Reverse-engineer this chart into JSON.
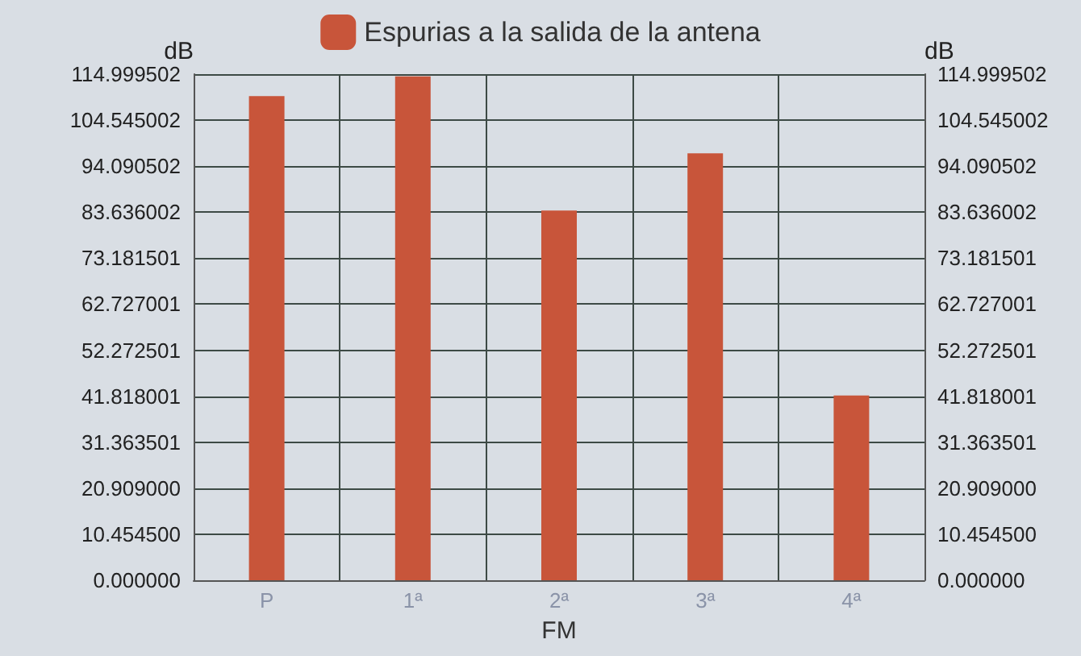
{
  "chart_data": {
    "type": "bar",
    "xlabel": "FM",
    "ylabel": "dB",
    "y2label": "dB",
    "categories": [
      "P",
      "1ª",
      "2ª",
      "3ª",
      "4ª"
    ],
    "series": [
      {
        "name": "Espurias a la salida de la antena",
        "color": "#c8553a",
        "values": [
          110,
          114.5,
          84,
          97,
          42
        ]
      }
    ],
    "ylim": [
      0,
      114.999502
    ],
    "yticks": [
      {
        "value": 0,
        "label": "0.000000"
      },
      {
        "value": 10.4545,
        "label": "10.454500"
      },
      {
        "value": 20.909,
        "label": "20.909000"
      },
      {
        "value": 31.363501,
        "label": "31.363501"
      },
      {
        "value": 41.818001,
        "label": "41.818001"
      },
      {
        "value": 52.272501,
        "label": "52.272501"
      },
      {
        "value": 62.727001,
        "label": "62.727001"
      },
      {
        "value": 73.181501,
        "label": "73.181501"
      },
      {
        "value": 83.636002,
        "label": "83.636002"
      },
      {
        "value": 94.090502,
        "label": "94.090502"
      },
      {
        "value": 104.545002,
        "label": "104.545002"
      },
      {
        "value": 114.999502,
        "label": "114.999502"
      }
    ],
    "y2lim": [
      0,
      114.999502
    ],
    "y2ticks": [
      {
        "value": 0,
        "label": "0.000000"
      },
      {
        "value": 10.4545,
        "label": "10.454500"
      },
      {
        "value": 20.909,
        "label": "20.909000"
      },
      {
        "value": 31.363501,
        "label": "31.363501"
      },
      {
        "value": 41.818001,
        "label": "41.818001"
      },
      {
        "value": 52.272501,
        "label": "52.272501"
      },
      {
        "value": 62.727001,
        "label": "62.727001"
      },
      {
        "value": 73.181501,
        "label": "73.181501"
      },
      {
        "value": 83.636002,
        "label": "83.636002"
      },
      {
        "value": 94.090502,
        "label": "94.090502"
      },
      {
        "value": 104.545002,
        "label": "104.545002"
      },
      {
        "value": 114.999502,
        "label": "114.999502"
      }
    ],
    "grid": true,
    "legend": "top"
  }
}
